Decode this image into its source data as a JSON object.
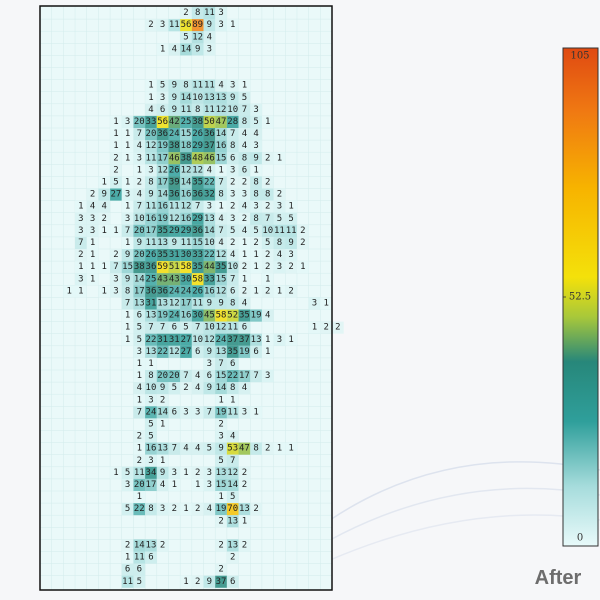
{
  "heatmap": {
    "rows": [
      [
        null,
        null,
        null,
        null,
        null,
        null,
        null,
        null,
        null,
        null,
        null,
        null,
        2,
        8,
        11,
        3
      ],
      [
        null,
        null,
        null,
        null,
        null,
        null,
        null,
        null,
        null,
        2,
        3,
        11,
        56,
        89,
        9,
        3,
        1
      ],
      [
        null,
        null,
        null,
        null,
        null,
        null,
        null,
        null,
        null,
        null,
        null,
        null,
        5,
        12,
        4
      ],
      [
        null,
        null,
        null,
        null,
        null,
        null,
        null,
        null,
        null,
        null,
        1,
        4,
        14,
        9,
        3
      ],
      [],
      [],
      [
        null,
        null,
        null,
        null,
        null,
        null,
        null,
        null,
        null,
        1,
        5,
        9,
        8,
        11,
        11,
        4,
        3,
        1
      ],
      [
        null,
        null,
        null,
        null,
        null,
        null,
        null,
        null,
        null,
        1,
        3,
        9,
        14,
        10,
        13,
        13,
        9,
        5
      ],
      [
        null,
        null,
        null,
        null,
        null,
        null,
        null,
        null,
        null,
        4,
        6,
        9,
        11,
        8,
        11,
        12,
        10,
        7,
        3
      ],
      [
        null,
        null,
        null,
        null,
        null,
        null,
        1,
        3,
        20,
        33,
        56,
        42,
        25,
        38,
        50,
        47,
        28,
        8,
        5,
        1
      ],
      [
        null,
        null,
        null,
        null,
        null,
        null,
        1,
        1,
        7,
        20,
        36,
        24,
        15,
        26,
        36,
        14,
        7,
        4,
        4
      ],
      [
        null,
        null,
        null,
        null,
        null,
        null,
        1,
        1,
        4,
        12,
        19,
        38,
        18,
        29,
        37,
        16,
        8,
        4,
        3
      ],
      [
        null,
        null,
        null,
        null,
        null,
        null,
        2,
        1,
        3,
        11,
        17,
        46,
        38,
        48,
        46,
        15,
        6,
        8,
        9,
        2,
        1
      ],
      [
        null,
        null,
        null,
        null,
        null,
        null,
        2,
        null,
        1,
        3,
        12,
        26,
        12,
        12,
        4,
        1,
        3,
        6,
        1
      ],
      [
        null,
        null,
        null,
        null,
        null,
        1,
        5,
        1,
        2,
        8,
        17,
        39,
        14,
        35,
        22,
        7,
        2,
        2,
        8,
        2
      ],
      [
        null,
        null,
        null,
        null,
        2,
        9,
        27,
        3,
        4,
        9,
        14,
        36,
        16,
        36,
        32,
        8,
        3,
        3,
        8,
        8,
        2
      ],
      [
        null,
        null,
        null,
        1,
        4,
        4,
        null,
        1,
        7,
        11,
        16,
        11,
        12,
        7,
        3,
        1,
        2,
        4,
        3,
        2,
        3,
        1
      ],
      [
        null,
        null,
        null,
        3,
        3,
        2,
        null,
        3,
        10,
        16,
        19,
        12,
        16,
        29,
        13,
        4,
        3,
        2,
        8,
        7,
        5,
        5
      ],
      [
        null,
        null,
        null,
        3,
        3,
        1,
        1,
        7,
        20,
        17,
        35,
        29,
        29,
        36,
        14,
        7,
        5,
        4,
        5,
        10,
        11,
        11,
        2
      ],
      [
        null,
        null,
        null,
        7,
        1,
        null,
        null,
        1,
        9,
        11,
        13,
        9,
        11,
        15,
        10,
        4,
        2,
        1,
        2,
        5,
        8,
        9,
        2
      ],
      [
        null,
        null,
        null,
        2,
        1,
        null,
        2,
        9,
        20,
        26,
        35,
        31,
        30,
        33,
        22,
        12,
        4,
        1,
        1,
        2,
        4,
        3
      ],
      [
        null,
        null,
        null,
        1,
        1,
        1,
        7,
        15,
        38,
        36,
        59,
        51,
        58,
        35,
        44,
        35,
        10,
        2,
        1,
        2,
        3,
        2,
        1
      ],
      [
        null,
        null,
        null,
        3,
        1,
        null,
        3,
        9,
        14,
        25,
        43,
        43,
        30,
        58,
        33,
        15,
        7,
        1,
        null,
        1
      ],
      [
        null,
        null,
        1,
        1,
        null,
        1,
        3,
        8,
        17,
        36,
        36,
        24,
        24,
        26,
        16,
        12,
        6,
        2,
        1,
        2,
        1,
        2
      ],
      [
        null,
        null,
        null,
        null,
        null,
        null,
        null,
        7,
        13,
        31,
        13,
        12,
        17,
        11,
        9,
        9,
        8,
        4,
        null,
        null,
        null,
        null,
        null,
        3,
        1
      ],
      [
        null,
        null,
        null,
        null,
        null,
        null,
        null,
        1,
        6,
        13,
        19,
        24,
        16,
        30,
        45,
        58,
        52,
        35,
        19,
        4
      ],
      [
        null,
        null,
        null,
        null,
        null,
        null,
        null,
        1,
        5,
        7,
        7,
        6,
        5,
        7,
        10,
        12,
        11,
        6,
        null,
        null,
        null,
        null,
        null,
        1,
        2,
        2
      ],
      [
        null,
        null,
        null,
        null,
        null,
        null,
        null,
        1,
        5,
        22,
        31,
        31,
        27,
        10,
        12,
        24,
        37,
        37,
        13,
        1,
        3,
        1
      ],
      [
        null,
        null,
        null,
        null,
        null,
        null,
        null,
        null,
        3,
        13,
        22,
        12,
        27,
        6,
        9,
        13,
        35,
        19,
        6,
        1
      ],
      [
        null,
        null,
        null,
        null,
        null,
        null,
        null,
        null,
        1,
        1,
        null,
        null,
        null,
        null,
        3,
        7,
        6
      ],
      [
        null,
        null,
        null,
        null,
        null,
        null,
        null,
        null,
        1,
        8,
        20,
        20,
        7,
        4,
        6,
        15,
        22,
        17,
        7,
        3
      ],
      [
        null,
        null,
        null,
        null,
        null,
        null,
        null,
        null,
        4,
        10,
        9,
        5,
        2,
        4,
        9,
        14,
        8,
        4
      ],
      [
        null,
        null,
        null,
        null,
        null,
        null,
        null,
        null,
        1,
        3,
        2,
        null,
        null,
        null,
        null,
        1,
        1
      ],
      [
        null,
        null,
        null,
        null,
        null,
        null,
        null,
        null,
        7,
        24,
        14,
        6,
        3,
        3,
        7,
        19,
        11,
        3,
        1
      ],
      [
        null,
        null,
        null,
        null,
        null,
        null,
        null,
        null,
        null,
        5,
        1,
        null,
        null,
        null,
        null,
        2
      ],
      [
        null,
        null,
        null,
        null,
        null,
        null,
        null,
        null,
        2,
        5,
        null,
        null,
        null,
        null,
        null,
        3,
        4
      ],
      [
        null,
        null,
        null,
        null,
        null,
        null,
        null,
        null,
        1,
        16,
        13,
        7,
        4,
        4,
        5,
        9,
        53,
        47,
        8,
        2,
        1,
        1
      ],
      [
        null,
        null,
        null,
        null,
        null,
        null,
        null,
        null,
        2,
        3,
        1,
        null,
        null,
        null,
        null,
        5,
        7
      ],
      [
        null,
        null,
        null,
        null,
        null,
        null,
        1,
        5,
        11,
        34,
        9,
        3,
        1,
        2,
        3,
        13,
        12,
        2
      ],
      [
        null,
        null,
        null,
        null,
        null,
        null,
        null,
        3,
        20,
        17,
        4,
        1,
        null,
        1,
        3,
        15,
        14,
        2
      ],
      [
        null,
        null,
        null,
        null,
        null,
        null,
        null,
        null,
        1,
        null,
        null,
        null,
        null,
        null,
        null,
        1,
        5
      ],
      [
        null,
        null,
        null,
        null,
        null,
        null,
        null,
        5,
        22,
        8,
        3,
        2,
        1,
        2,
        4,
        19,
        70,
        13,
        2
      ],
      [
        null,
        null,
        null,
        null,
        null,
        null,
        null,
        null,
        null,
        null,
        null,
        null,
        null,
        null,
        null,
        2,
        13,
        1
      ],
      [],
      [
        null,
        null,
        null,
        null,
        null,
        null,
        null,
        2,
        14,
        13,
        2,
        null,
        null,
        null,
        null,
        2,
        13,
        2
      ],
      [
        null,
        null,
        null,
        null,
        null,
        null,
        null,
        1,
        11,
        6,
        null,
        null,
        null,
        null,
        null,
        null,
        2
      ],
      [
        null,
        null,
        null,
        null,
        null,
        null,
        null,
        6,
        6,
        null,
        null,
        null,
        null,
        null,
        null,
        2
      ],
      [
        null,
        null,
        null,
        null,
        null,
        null,
        null,
        11,
        5,
        null,
        null,
        null,
        1,
        2,
        9,
        37,
        6
      ]
    ]
  },
  "colorbar": {
    "range": [
      0,
      105
    ],
    "ticks": [
      0,
      52.5,
      105
    ]
  },
  "watermark": "After"
}
